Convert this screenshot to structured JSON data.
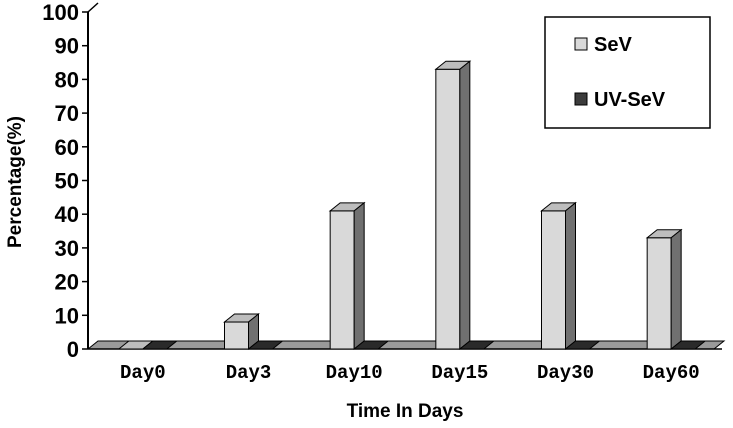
{
  "chart_data": {
    "type": "bar",
    "style": "3d-clustered",
    "title": "",
    "xlabel": "Time In Days",
    "ylabel": "Percentage(%)",
    "ylim": [
      0,
      100
    ],
    "yticks": [
      "0",
      "10",
      "20",
      "30",
      "40",
      "50",
      "60",
      "70",
      "80",
      "90",
      "100"
    ],
    "categories": [
      "Day0",
      "Day3",
      "Day10",
      "Day15",
      "Day30",
      "Day60"
    ],
    "series": [
      {
        "name": "SeV",
        "values": [
          0,
          8,
          41,
          83,
          41,
          33
        ],
        "color": "#d9d9d9",
        "side_color": "#707070",
        "top_color": "#bdbdbd"
      },
      {
        "name": "UV-SeV",
        "values": [
          0,
          0,
          0,
          0,
          0,
          0
        ],
        "color": "#3c3c3c",
        "side_color": "#1a1a1a",
        "top_color": "#2a2a2a"
      }
    ],
    "grid": false,
    "legend_position": "top-right"
  }
}
